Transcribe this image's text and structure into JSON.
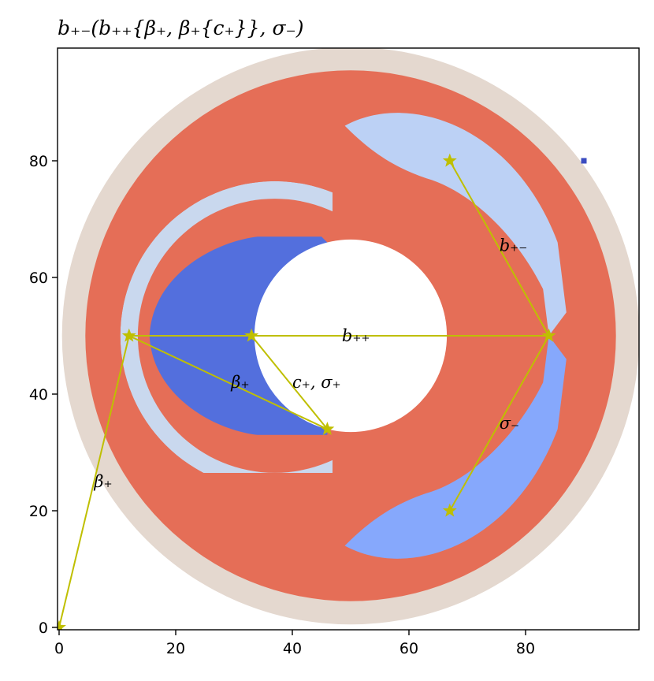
{
  "chart_data": {
    "type": "heatmap",
    "title": "b₊₋(b₊₊{β₊, β₊{c₊}}, σ₋)",
    "xlabel": "",
    "ylabel": "",
    "xlim": [
      0,
      99
    ],
    "ylim": [
      0,
      99
    ],
    "x_ticks": [
      0,
      20,
      40,
      60,
      80
    ],
    "y_ticks": [
      0,
      20,
      40,
      60,
      80
    ],
    "grid": false,
    "regions": [
      {
        "name": "outer rim",
        "shape": "annulus",
        "center": [
          50,
          50
        ],
        "r_inner": 45.5,
        "r_outer": 49.5,
        "color": "#e4d8cf"
      },
      {
        "name": "main ring",
        "shape": "annulus",
        "center": [
          50,
          50
        ],
        "r_inner": 16.5,
        "r_outer": 45.5,
        "color": "#e56e57"
      },
      {
        "name": "upper-right crescent",
        "color": "#bcd1f5"
      },
      {
        "name": "lower-right crescent",
        "color": "#86a8fc"
      },
      {
        "name": "left crescent",
        "color": "#536fdd"
      },
      {
        "name": "left crescent edge",
        "color": "#c9d8ee"
      },
      {
        "name": "small dark cell",
        "point": [
          90,
          80
        ],
        "color": "#3b4cc0"
      }
    ],
    "path_color": "#bfbf00",
    "points": [
      {
        "id": "p0",
        "x": 0,
        "y": 0
      },
      {
        "id": "p1",
        "x": 12,
        "y": 50
      },
      {
        "id": "p2",
        "x": 33,
        "y": 50
      },
      {
        "id": "p3",
        "x": 46,
        "y": 34
      },
      {
        "id": "p4",
        "x": 84,
        "y": 50
      },
      {
        "id": "p5",
        "x": 67,
        "y": 80
      },
      {
        "id": "p6",
        "x": 67,
        "y": 20
      }
    ],
    "edges": [
      {
        "from": "p0",
        "to": "p1"
      },
      {
        "from": "p1",
        "to": "p2"
      },
      {
        "from": "p2",
        "to": "p3"
      },
      {
        "from": "p1",
        "to": "p3"
      },
      {
        "from": "p2",
        "to": "p4"
      },
      {
        "from": "p4",
        "to": "p5"
      },
      {
        "from": "p4",
        "to": "p6"
      }
    ],
    "annotations": [
      {
        "text": "β₊",
        "x": 6,
        "y": 25
      },
      {
        "text": "β₊",
        "x": 29.5,
        "y": 42
      },
      {
        "text": "c₊, σ₊",
        "x": 40,
        "y": 42
      },
      {
        "text": "b₊₊",
        "x": 48.5,
        "y": 50
      },
      {
        "text": "b₊₋",
        "x": 75.5,
        "y": 65.5
      },
      {
        "text": "σ₋",
        "x": 75.5,
        "y": 35
      }
    ]
  }
}
